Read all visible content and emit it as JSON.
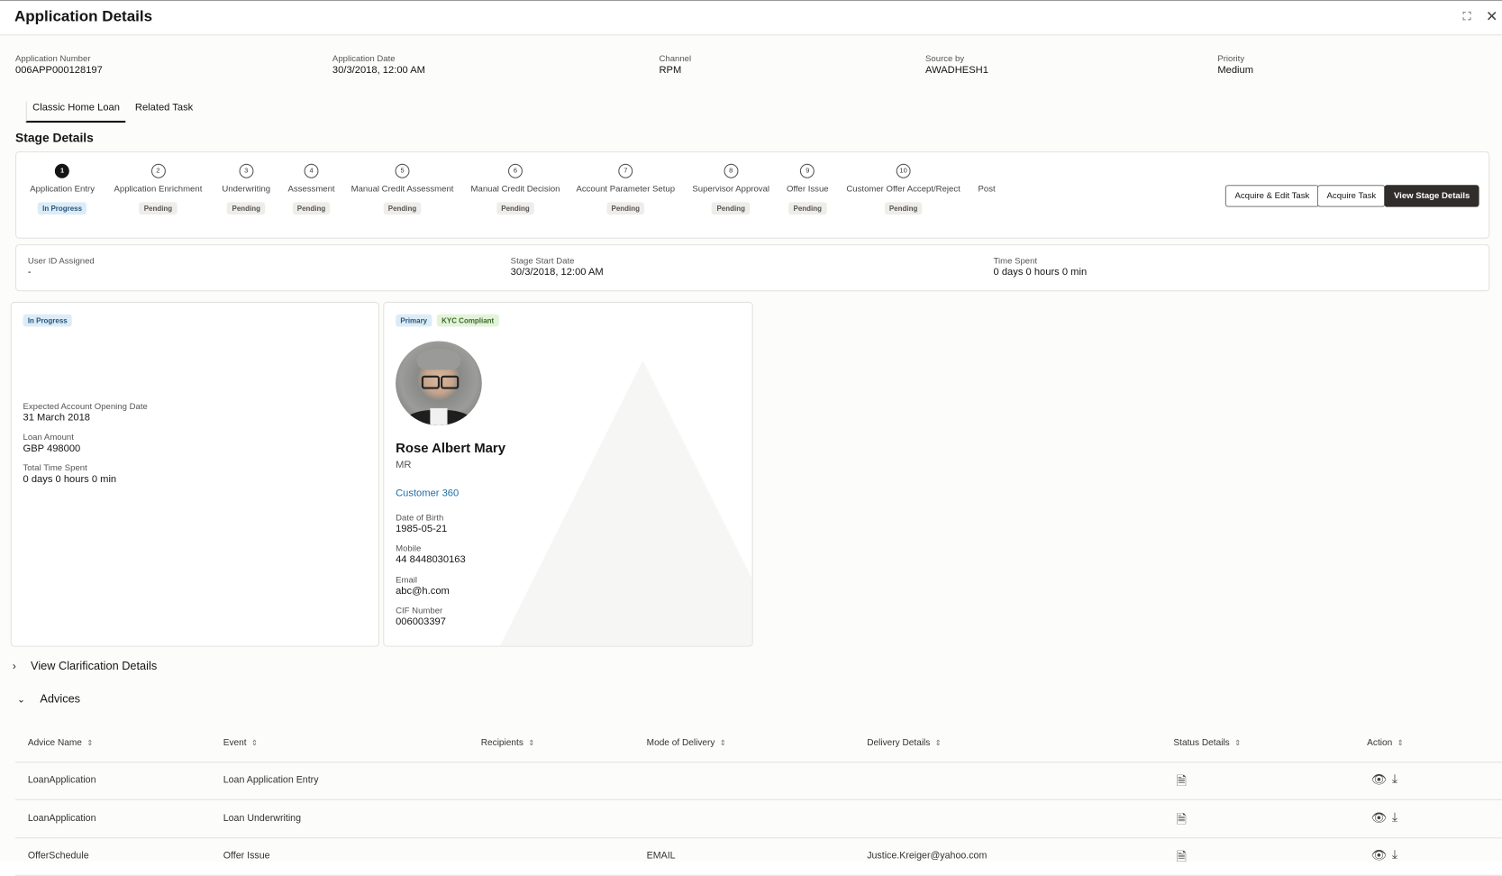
{
  "title": "Application Details",
  "header_fields": [
    {
      "label": "Application Number",
      "value": "006APP000128197"
    },
    {
      "label": "Application Date",
      "value": "30/3/2018, 12:00 AM"
    },
    {
      "label": "Channel",
      "value": "RPM"
    },
    {
      "label": "Source by",
      "value": "AWADHESH1"
    },
    {
      "label": "Priority",
      "value": "Medium"
    }
  ],
  "tabs": [
    {
      "label": "Classic Home Loan",
      "active": true
    },
    {
      "label": "Related Task",
      "active": false
    }
  ],
  "stage_title": "Stage Details",
  "stages": [
    {
      "num": "1",
      "name": "Application Entry",
      "status": "In Progress"
    },
    {
      "num": "2",
      "name": "Application Enrichment",
      "status": "Pending"
    },
    {
      "num": "3",
      "name": "Underwriting",
      "status": "Pending"
    },
    {
      "num": "4",
      "name": "Assessment",
      "status": "Pending"
    },
    {
      "num": "5",
      "name": "Manual Credit Assessment",
      "status": "Pending"
    },
    {
      "num": "6",
      "name": "Manual Credit Decision",
      "status": "Pending"
    },
    {
      "num": "7",
      "name": "Account Parameter Setup",
      "status": "Pending"
    },
    {
      "num": "8",
      "name": "Supervisor Approval",
      "status": "Pending"
    },
    {
      "num": "9",
      "name": "Offer Issue",
      "status": "Pending"
    },
    {
      "num": "10",
      "name": "Customer Offer Accept/Reject",
      "status": "Pending"
    },
    {
      "num": "",
      "name": "Post",
      "status": ""
    }
  ],
  "buttons": {
    "acquire_edit": "Acquire & Edit Task",
    "acquire": "Acquire Task",
    "view_stage": "View Stage Details"
  },
  "stage_info": [
    {
      "label": "User ID Assigned",
      "value": "-"
    },
    {
      "label": "Stage Start Date",
      "value": "30/3/2018, 12:00 AM"
    },
    {
      "label": "Time Spent",
      "value": "0 days 0 hours 0 min"
    }
  ],
  "loan_card": {
    "status": "In Progress",
    "fields": [
      {
        "label": "Expected Account Opening Date",
        "value": "31 March 2018"
      },
      {
        "label": "Loan Amount",
        "value": "GBP 498000"
      },
      {
        "label": "Total Time Spent",
        "value": "0 days 0 hours 0 min"
      }
    ]
  },
  "customer_card": {
    "badges": [
      "Primary",
      "KYC Compliant"
    ],
    "name": "Rose Albert Mary",
    "salutation": "MR",
    "link": "Customer 360",
    "fields": [
      {
        "label": "Date of Birth",
        "value": "1985-05-21"
      },
      {
        "label": "Mobile",
        "value": "44 8448030163"
      },
      {
        "label": "Email",
        "value": "abc@h.com"
      },
      {
        "label": "CIF Number",
        "value": "006003397"
      }
    ]
  },
  "sections": {
    "clarification": "View Clarification Details",
    "advices": "Advices"
  },
  "advices_table": {
    "columns": [
      "Advice Name",
      "Event",
      "Recipients",
      "Mode of Delivery",
      "Delivery Details",
      "Status Details",
      "Action"
    ],
    "rows": [
      [
        "LoanApplication",
        "Loan Application Entry",
        "",
        "",
        "",
        "",
        ""
      ],
      [
        "LoanApplication",
        "Loan Underwriting",
        "",
        "",
        "",
        "",
        ""
      ],
      [
        "OfferSchedule",
        "Offer Issue",
        "",
        "EMAIL",
        "Justice.Kreiger@yahoo.com",
        "",
        ""
      ]
    ]
  },
  "colors": {
    "accent_link": "#1a6fa8",
    "dark_button": "#312d2a",
    "in_progress_badge": "#dcecf7",
    "kyc_badge": "#e3f3da"
  }
}
